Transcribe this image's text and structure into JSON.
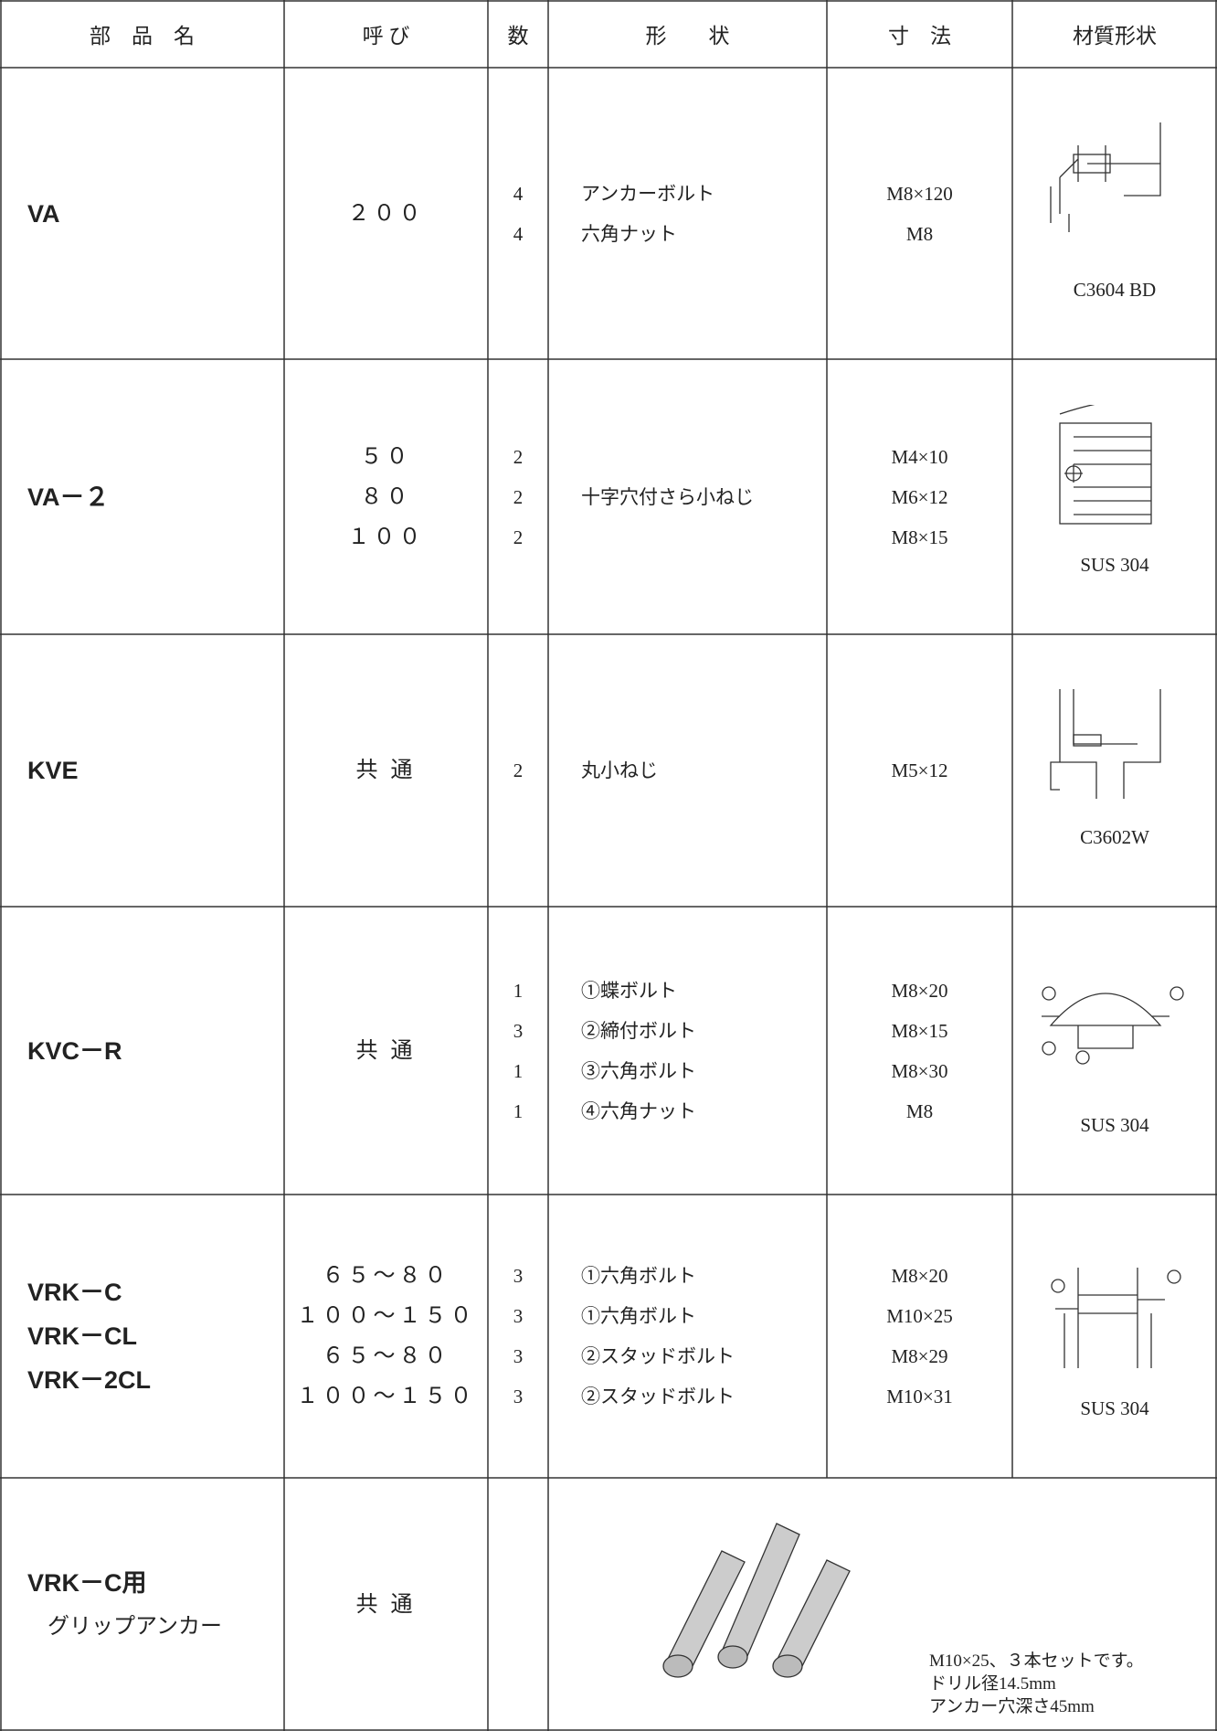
{
  "table": {
    "header": [
      "部　品　名",
      "呼 び",
      "数",
      "形　　状",
      "寸　法",
      "材質形状"
    ],
    "rows": [
      {
        "name": [
          "VA"
        ],
        "call": [
          "２００"
        ],
        "qty": [
          "4",
          "4"
        ],
        "shape": [
          "アンカーボルト",
          "六角ナット"
        ],
        "dims": [
          "M8×120",
          "M8"
        ],
        "material": "C3604 BD"
      },
      {
        "name": [
          "VA－２"
        ],
        "call": [
          "５０",
          "８０",
          "１００"
        ],
        "qty": [
          "2",
          "2",
          "2"
        ],
        "shape": [
          "十字穴付さら小ねじ"
        ],
        "dims": [
          "M4×10",
          "M6×12",
          "M8×15"
        ],
        "material": "SUS 304"
      },
      {
        "name": [
          "KVE"
        ],
        "call": [
          "共 通"
        ],
        "qty": [
          "2"
        ],
        "shape": [
          "丸小ねじ"
        ],
        "dims": [
          "M5×12"
        ],
        "material": "C3602W"
      },
      {
        "name": [
          "KVC－R"
        ],
        "call": [
          "共 通"
        ],
        "qty": [
          "1",
          "3",
          "1",
          "1"
        ],
        "shape": [
          "①蝶ボルト",
          "②締付ボルト",
          "③六角ボルト",
          "④六角ナット"
        ],
        "dims": [
          "M8×20",
          "M8×15",
          "M8×30",
          "M8"
        ],
        "material": "SUS 304"
      },
      {
        "name": [
          "VRK－C",
          "VRK－CL",
          "VRK－2CL"
        ],
        "call": [
          "６５～８０",
          "１００～１５０",
          "６５～８０",
          "１００～１５０"
        ],
        "qty": [
          "3",
          "3",
          "3",
          "3"
        ],
        "shape": [
          "①六角ボルト",
          "①六角ボルト",
          "②スタッドボルト",
          "②スタッドボルト"
        ],
        "dims": [
          "M8×20",
          "M10×25",
          "M8×29",
          "M10×31"
        ],
        "material": "SUS 304"
      },
      {
        "name": [
          "VRK－C用",
          "グリップアンカー"
        ],
        "call": [
          "共 通"
        ],
        "note": [
          "M10×25、３本セットです。",
          "ドリル径14.5mm",
          "アンカー穴深さ45mm"
        ]
      }
    ]
  }
}
